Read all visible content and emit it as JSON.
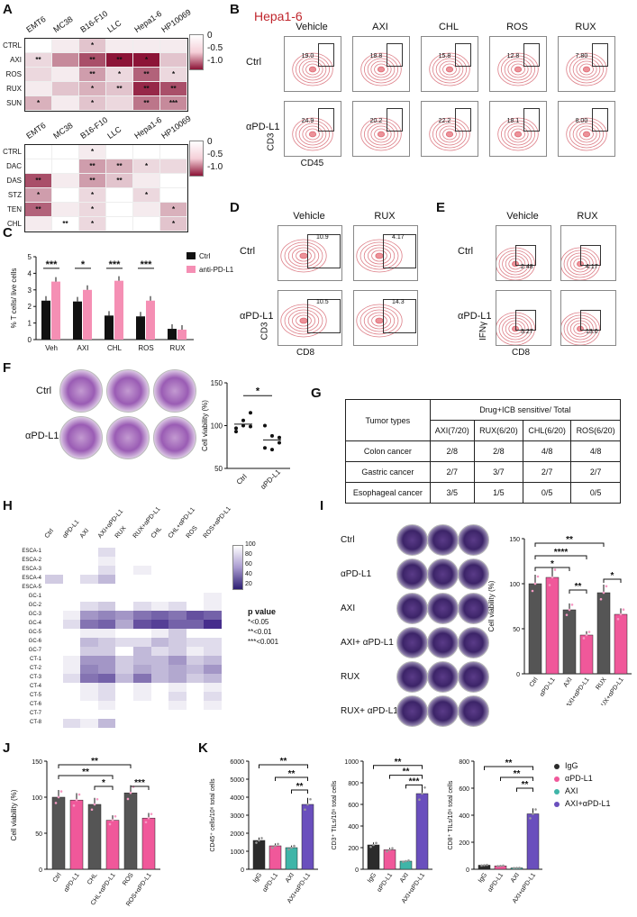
{
  "panels": {
    "A": "A",
    "B": "B",
    "C": "C",
    "D": "D",
    "E": "E",
    "F": "F",
    "G": "G",
    "H": "H",
    "I": "I",
    "J": "J",
    "K": "K"
  },
  "panelA": {
    "top": {
      "columns": [
        "EMT6",
        "MC38",
        "B16-F10",
        "LLC",
        "Hepa1-6",
        "HP10069"
      ],
      "rows": [
        "CTRL",
        "AXI",
        "ROS",
        "RUX",
        "SUN"
      ],
      "values": [
        [
          0,
          0.1,
          0.3,
          0.1,
          0.1,
          0.1
        ],
        [
          0.2,
          0.6,
          0.9,
          1.2,
          1.2,
          0.3
        ],
        [
          0.2,
          0.1,
          0.5,
          0.2,
          0.8,
          0.2
        ],
        [
          0.1,
          0.3,
          0.4,
          0.3,
          1.1,
          0.9
        ],
        [
          0.4,
          0.1,
          0.3,
          0.2,
          0.7,
          0.6
        ]
      ],
      "stars": [
        [
          "",
          "",
          "*",
          "",
          "",
          ""
        ],
        [
          "**",
          "",
          "**",
          "**",
          "*",
          ""
        ],
        [
          "",
          "",
          "**",
          "*",
          "**",
          "*"
        ],
        [
          "",
          "",
          "*",
          "**",
          "**",
          "**"
        ],
        [
          "*",
          "",
          "*",
          "",
          "**",
          "***"
        ]
      ],
      "scale": [
        "0",
        "-0.5",
        "-1.0"
      ]
    },
    "bottom": {
      "columns": [
        "EMT6",
        "MC38",
        "B16-F10",
        "LLC",
        "Hepa1-6",
        "HP10069"
      ],
      "rows": [
        "CTRL",
        "DAC",
        "DAS",
        "STZ",
        "TEN",
        "CHL"
      ],
      "values": [
        [
          0,
          0,
          0.1,
          0,
          0,
          0
        ],
        [
          0,
          0,
          0.5,
          0.4,
          0.2,
          0.2
        ],
        [
          0.9,
          0.1,
          0.5,
          0.3,
          0.1,
          0
        ],
        [
          0.5,
          0,
          0.2,
          0,
          0.2,
          0
        ],
        [
          0.8,
          0.1,
          0.2,
          0,
          0.1,
          0.4
        ],
        [
          0.1,
          0,
          0.2,
          0,
          0,
          0.3
        ]
      ],
      "stars": [
        [
          "",
          "",
          "*",
          "",
          "",
          ""
        ],
        [
          "",
          "",
          "**",
          "**",
          "*",
          ""
        ],
        [
          "**",
          "",
          "**",
          "**",
          "",
          ""
        ],
        [
          "*",
          "",
          "*",
          "",
          "*",
          ""
        ],
        [
          "**",
          "",
          "*",
          "",
          "",
          "*"
        ],
        [
          "",
          "**",
          "*",
          "",
          "",
          "*"
        ]
      ],
      "scale": [
        "0",
        "-0.5",
        "-1.0"
      ]
    }
  },
  "panelB": {
    "title": "Hepa1-6",
    "columns": [
      "Vehicle",
      "AXI",
      "CHL",
      "ROS",
      "RUX"
    ],
    "rows": [
      "Ctrl",
      "αPD-L1"
    ],
    "values": [
      [
        "19.0",
        "18.8",
        "15.8",
        "12.8",
        "7.80"
      ],
      [
        "24.9",
        "20.2",
        "22.2",
        "18.1",
        "8.00"
      ]
    ],
    "xlabel": "CD45",
    "ylabel": "CD3"
  },
  "panelD": {
    "columns": [
      "Vehicle",
      "RUX"
    ],
    "rows": [
      "Ctrl",
      "αPD-L1"
    ],
    "values": [
      [
        "10.9",
        "4.17"
      ],
      [
        "10.5",
        "14.3"
      ]
    ],
    "xlabel": "CD8",
    "ylabel": "CD3"
  },
  "panelE": {
    "columns": [
      "Vehicle",
      "RUX"
    ],
    "rows": [
      "Ctrl",
      "αPD-L1"
    ],
    "values": [
      [
        "2.48",
        "4.17"
      ],
      [
        "3.27",
        "13.0"
      ]
    ],
    "xlabel": "CD8",
    "ylabel": "IFNγ"
  },
  "panelF": {
    "rows": [
      "Ctrl",
      "αPD-L1"
    ],
    "ylabel": "Cell viability (%)",
    "categories": [
      "Ctrl",
      "αPD-L1"
    ],
    "sig": "*"
  },
  "panelG": {
    "header_left": "Tumor types",
    "header_top": "Drug+ICB sensitive/ Total",
    "columns": [
      "AXI(7/20)",
      "RUX(6/20)",
      "CHL(6/20)",
      "ROS(6/20)"
    ],
    "rows": [
      {
        "name": "Colon cancer",
        "values": [
          "2/8",
          "2/8",
          "4/8",
          "4/8"
        ]
      },
      {
        "name": "Gastric cancer",
        "values": [
          "2/7",
          "3/7",
          "2/7",
          "2/7"
        ]
      },
      {
        "name": "Esophageal cancer",
        "values": [
          "3/5",
          "1/5",
          "0/5",
          "0/5"
        ]
      }
    ]
  },
  "panelH": {
    "columns": [
      "Ctrl",
      "αPD-L1",
      "AXI",
      "AXI+αPD-L1",
      "RUX",
      "RUX+αPD-L1",
      "CHL",
      "CHL+αPD-L1",
      "ROS",
      "ROS+αPD-L1"
    ],
    "rows": [
      "ESCA-1",
      "ESCA-2",
      "ESCA-3",
      "ESCA-4",
      "ESCA-5",
      "GC-1",
      "GC-2",
      "GC-3",
      "GC-4",
      "GC-5",
      "GC-6",
      "GC-7",
      "CT-1",
      "CT-2",
      "CT-3",
      "CT-4",
      "CT-5",
      "CT-6",
      "CT-7",
      "CT-8"
    ],
    "values": [
      [
        100,
        100,
        100,
        90,
        100,
        100,
        100,
        100,
        100,
        100
      ],
      [
        100,
        100,
        100,
        95,
        100,
        100,
        100,
        100,
        100,
        100
      ],
      [
        100,
        100,
        100,
        90,
        100,
        95,
        100,
        100,
        100,
        100
      ],
      [
        85,
        100,
        90,
        80,
        100,
        100,
        100,
        100,
        100,
        100
      ],
      [
        100,
        100,
        100,
        100,
        100,
        100,
        100,
        100,
        100,
        100
      ],
      [
        100,
        100,
        100,
        100,
        100,
        100,
        100,
        100,
        100,
        95
      ],
      [
        100,
        100,
        90,
        85,
        100,
        90,
        95,
        90,
        100,
        95
      ],
      [
        100,
        95,
        70,
        65,
        70,
        60,
        55,
        60,
        50,
        55
      ],
      [
        100,
        90,
        60,
        55,
        75,
        50,
        45,
        55,
        55,
        40
      ],
      [
        100,
        100,
        95,
        95,
        100,
        100,
        95,
        85,
        100,
        100
      ],
      [
        100,
        100,
        80,
        85,
        90,
        90,
        80,
        85,
        90,
        90
      ],
      [
        100,
        100,
        85,
        85,
        100,
        80,
        90,
        85,
        95,
        90
      ],
      [
        100,
        95,
        70,
        70,
        85,
        80,
        80,
        70,
        85,
        80
      ],
      [
        100,
        95,
        65,
        70,
        85,
        75,
        80,
        75,
        80,
        70
      ],
      [
        100,
        90,
        60,
        55,
        80,
        60,
        80,
        75,
        85,
        80
      ],
      [
        100,
        100,
        95,
        90,
        100,
        95,
        100,
        95,
        100,
        95
      ],
      [
        100,
        100,
        95,
        90,
        100,
        95,
        100,
        90,
        100,
        90
      ],
      [
        100,
        100,
        100,
        95,
        100,
        100,
        100,
        95,
        100,
        95
      ],
      [
        100,
        100,
        100,
        100,
        100,
        100,
        100,
        100,
        100,
        100
      ],
      [
        100,
        90,
        95,
        80,
        100,
        100,
        100,
        100,
        100,
        100
      ]
    ],
    "scale": [
      "100",
      "80",
      "60",
      "40",
      "20"
    ],
    "pvalue_title": "p value",
    "pvalue_legend": [
      "*<0.05",
      "**<0.01",
      "***<0.001"
    ]
  },
  "panelI": {
    "rows": [
      "Ctrl",
      "αPD-L1",
      "AXI",
      "AXI+ αPD-L1",
      "RUX",
      "RUX+ αPD-L1"
    ],
    "categories": [
      "Ctrl",
      "αPD-L1",
      "AXI",
      "AXI+αPD-L1",
      "RUX",
      "RUX+αPD-L1"
    ],
    "ylabel": "Cell viability (%)",
    "sig": [
      "**",
      "****",
      "*",
      "**",
      "*"
    ]
  },
  "panelJ": {
    "categories": [
      "Ctrl",
      "αPD-L1",
      "CHL",
      "CHL+αPD-L1",
      "ROS",
      "ROS+αPD-L1"
    ],
    "ylabel": "Cell viability (%)",
    "sig": [
      "**",
      "**",
      "*",
      "***"
    ]
  },
  "panelK": {
    "legend": [
      "IgG",
      "αPD-L1",
      "AXI",
      "AXI+αPD-L1"
    ],
    "categories": [
      "IgG",
      "αPD-L1",
      "AXI",
      "AXI+αPD-L1"
    ],
    "ylabels": [
      "CD45⁺ cells/10⁶ total cells",
      "CD3⁺ TILs/10⁶ total cells",
      "CD8⁺ TILs/10⁶ total cells"
    ],
    "sig": [
      "**",
      "**",
      "**",
      "***"
    ]
  },
  "panelC": {
    "categories": [
      "Veh",
      "AXI",
      "CHL",
      "ROS",
      "RUX"
    ],
    "legend": [
      "Ctrl",
      "anti-PD-L1"
    ],
    "ylabel": "% T cells/ live cells",
    "sig": [
      "***",
      "*",
      "***",
      "***"
    ]
  },
  "chart_data": [
    {
      "type": "bar",
      "id": "C",
      "categories": [
        "Veh",
        "AXI",
        "CHL",
        "ROS",
        "RUX"
      ],
      "series": [
        {
          "name": "Ctrl",
          "values": [
            2.35,
            2.3,
            1.45,
            1.4,
            0.65
          ]
        },
        {
          "name": "anti-PD-L1",
          "values": [
            3.5,
            3.0,
            3.55,
            2.35,
            0.6
          ]
        }
      ],
      "ylabel": "% T cells/ live cells",
      "ylim": [
        0,
        5
      ],
      "yticks": [
        0,
        1,
        2,
        3,
        4,
        5
      ]
    },
    {
      "type": "scatter",
      "id": "F",
      "categories": [
        "Ctrl",
        "αPD-L1"
      ],
      "series": [
        {
          "name": "Ctrl",
          "values": [
            97,
            106,
            115,
            93,
            100,
            99
          ]
        },
        {
          "name": "αPD-L1",
          "values": [
            100,
            88,
            86,
            74,
            72,
            80
          ]
        }
      ],
      "ylabel": "Cell viability (%)",
      "ylim": [
        50,
        150
      ],
      "yticks": [
        50,
        100,
        150
      ]
    },
    {
      "type": "bar",
      "id": "I",
      "categories": [
        "Ctrl",
        "αPD-L1",
        "AXI",
        "AXI+αPD-L1",
        "RUX",
        "RUX+αPD-L1"
      ],
      "values": [
        100,
        107,
        71,
        43,
        90,
        66
      ],
      "ylabel": "Cell viability (%)",
      "ylim": [
        0,
        150
      ],
      "yticks": [
        0,
        50,
        100,
        150
      ]
    },
    {
      "type": "bar",
      "id": "J",
      "categories": [
        "Ctrl",
        "αPD-L1",
        "CHL",
        "CHL+αPD-L1",
        "ROS",
        "ROS+αPD-L1"
      ],
      "values": [
        100,
        96,
        90,
        68,
        106,
        71
      ],
      "ylabel": "Cell viability (%)",
      "ylim": [
        0,
        150
      ],
      "yticks": [
        0,
        50,
        100,
        150
      ]
    },
    {
      "type": "bar",
      "id": "K1",
      "categories": [
        "IgG",
        "αPD-L1",
        "AXI",
        "AXI+αPD-L1"
      ],
      "values": [
        1600,
        1300,
        1200,
        3600
      ],
      "ylabel": "CD45⁺ cells/10⁶ total cells",
      "ylim": [
        0,
        6000
      ],
      "yticks": [
        0,
        1000,
        2000,
        3000,
        4000,
        5000,
        6000
      ]
    },
    {
      "type": "bar",
      "id": "K2",
      "categories": [
        "IgG",
        "αPD-L1",
        "AXI",
        "AXI+αPD-L1"
      ],
      "values": [
        225,
        180,
        75,
        700
      ],
      "ylabel": "CD3⁺ TILs/10⁶ total cells",
      "ylim": [
        0,
        1000
      ],
      "yticks": [
        0,
        200,
        400,
        600,
        800,
        1000
      ]
    },
    {
      "type": "bar",
      "id": "K3",
      "categories": [
        "IgG",
        "αPD-L1",
        "AXI",
        "AXI+αPD-L1"
      ],
      "values": [
        30,
        25,
        10,
        410
      ],
      "ylabel": "CD8⁺ TILs/10⁶ total cells",
      "ylim": [
        0,
        800
      ],
      "yticks": [
        0,
        200,
        400,
        600,
        800
      ]
    }
  ]
}
